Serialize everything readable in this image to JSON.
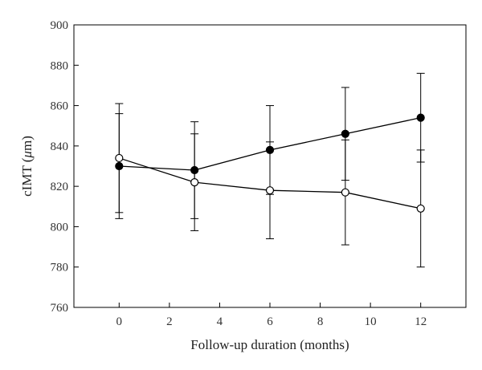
{
  "chart_data": {
    "type": "line",
    "xlabel": "Follow-up duration (months)",
    "ylabel": "cIMT (μm)",
    "ylabel_parts": [
      "cIMT (",
      "μ",
      "m)"
    ],
    "xlim": [
      -1.8,
      13.8
    ],
    "ylim": [
      760,
      900
    ],
    "x_ticks": [
      0,
      2,
      4,
      6,
      8,
      10,
      12
    ],
    "y_ticks": [
      760,
      780,
      800,
      820,
      840,
      860,
      880,
      900
    ],
    "grid": false,
    "series": [
      {
        "marker": "filled-circle",
        "x": [
          0,
          3,
          6,
          9,
          12
        ],
        "y": [
          830,
          828,
          838,
          846,
          854
        ],
        "err_low": [
          804,
          804,
          816,
          823,
          832
        ],
        "err_high": [
          856,
          852,
          860,
          869,
          876
        ]
      },
      {
        "marker": "open-circle",
        "x": [
          0,
          3,
          6,
          9,
          12
        ],
        "y": [
          834,
          822,
          818,
          817,
          809
        ],
        "err_low": [
          807,
          798,
          794,
          791,
          780
        ],
        "err_high": [
          861,
          846,
          842,
          843,
          838
        ]
      }
    ]
  }
}
